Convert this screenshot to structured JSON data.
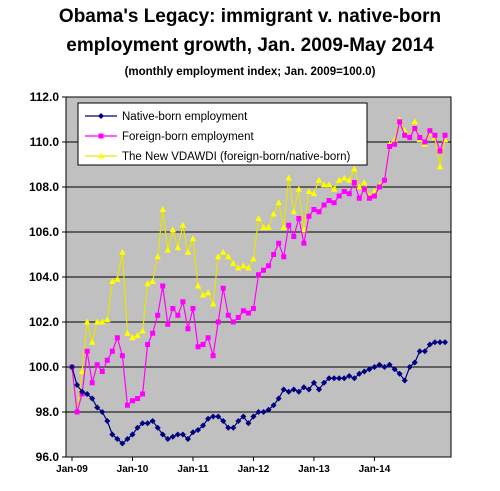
{
  "chart_data": {
    "type": "line",
    "title": "Obama's Legacy: immigrant v. native-born",
    "title_line2": "employment growth, Jan. 2009-May 2014",
    "subtitle": "(monthly employment index; Jan. 2009=100.0)",
    "xlabel": "",
    "ylabel": "",
    "ylim": [
      96,
      112
    ],
    "yticks": [
      "96.0",
      "98.0",
      "100.0",
      "102.0",
      "104.0",
      "106.0",
      "108.0",
      "110.0",
      "112.0"
    ],
    "xticks": [
      "Jan-09",
      "Jan-10",
      "Jan-11",
      "Jan-12",
      "Jan-13",
      "Jan-14"
    ],
    "grid": true,
    "legend": "top-left",
    "plot_bg": "#c0c0c0",
    "series": [
      {
        "name": "Native-born employment",
        "color": "#000080",
        "marker": "diamond",
        "values": [
          100.0,
          99.2,
          98.9,
          98.8,
          98.6,
          98.2,
          98.0,
          97.6,
          97.0,
          96.8,
          96.6,
          96.8,
          97.0,
          97.3,
          97.5,
          97.5,
          97.6,
          97.3,
          97.0,
          96.8,
          96.9,
          97.0,
          97.0,
          96.8,
          97.1,
          97.2,
          97.4,
          97.7,
          97.8,
          97.8,
          97.6,
          97.3,
          97.3,
          97.6,
          97.8,
          97.5,
          97.8,
          98.0,
          98.0,
          98.1,
          98.3,
          98.6,
          99.0,
          98.9,
          99.0,
          98.9,
          99.1,
          99.0,
          99.3,
          99.0,
          99.3,
          99.5,
          99.5,
          99.5,
          99.5,
          99.6,
          99.5,
          99.7,
          99.8,
          99.9,
          100.0,
          100.1,
          100.0,
          100.1,
          99.9,
          99.7,
          99.4,
          100.0,
          100.2,
          100.7,
          100.7,
          101.0,
          101.1,
          101.1,
          101.1
        ]
      },
      {
        "name": "Foreign-born employment",
        "color": "#ff00ff",
        "marker": "square",
        "values": [
          100.0,
          98.0,
          98.8,
          100.7,
          99.3,
          100.1,
          99.8,
          100.3,
          100.7,
          101.3,
          100.5,
          98.3,
          98.5,
          98.6,
          98.8,
          101.0,
          101.5,
          102.3,
          103.6,
          101.9,
          102.6,
          102.3,
          102.9,
          101.7,
          102.6,
          100.9,
          101.0,
          101.3,
          100.5,
          102.0,
          103.5,
          102.3,
          102.0,
          102.2,
          102.5,
          102.4,
          102.6,
          104.1,
          104.3,
          104.5,
          105.0,
          105.5,
          104.9,
          106.3,
          105.8,
          106.6,
          105.5,
          106.7,
          107.0,
          106.9,
          107.2,
          107.4,
          107.3,
          107.6,
          107.8,
          107.7,
          108.2,
          107.5,
          107.9,
          107.5,
          107.6,
          108.0,
          108.3,
          109.8,
          109.9,
          110.9,
          110.3,
          110.2,
          110.6,
          110.2,
          110.0,
          110.5,
          110.3,
          109.6,
          110.3
        ]
      },
      {
        "name": "The New VDAWDI  (foreign-born/native-born)",
        "color": "#ffff00",
        "marker": "triangle",
        "values": [
          100.0,
          98.0,
          99.8,
          102.0,
          101.1,
          102.0,
          102.0,
          102.1,
          103.8,
          103.9,
          105.1,
          101.5,
          101.3,
          101.4,
          101.6,
          103.7,
          103.8,
          104.9,
          107.0,
          105.2,
          106.1,
          105.3,
          106.3,
          105.1,
          105.7,
          103.6,
          103.2,
          103.3,
          102.8,
          104.9,
          105.1,
          104.9,
          104.6,
          104.4,
          104.5,
          104.4,
          104.8,
          106.6,
          106.2,
          106.2,
          106.8,
          107.3,
          106.2,
          108.4,
          106.9,
          107.9,
          106.1,
          107.8,
          107.7,
          108.3,
          108.1,
          108.1,
          107.9,
          108.3,
          108.4,
          108.3,
          108.8,
          108.0,
          108.2,
          107.6,
          107.8,
          108.1,
          108.3,
          109.9,
          110.1,
          111.0,
          110.5,
          110.2,
          110.9,
          110.1,
          109.9,
          110.4,
          110.2,
          108.9,
          110.1
        ]
      }
    ]
  }
}
